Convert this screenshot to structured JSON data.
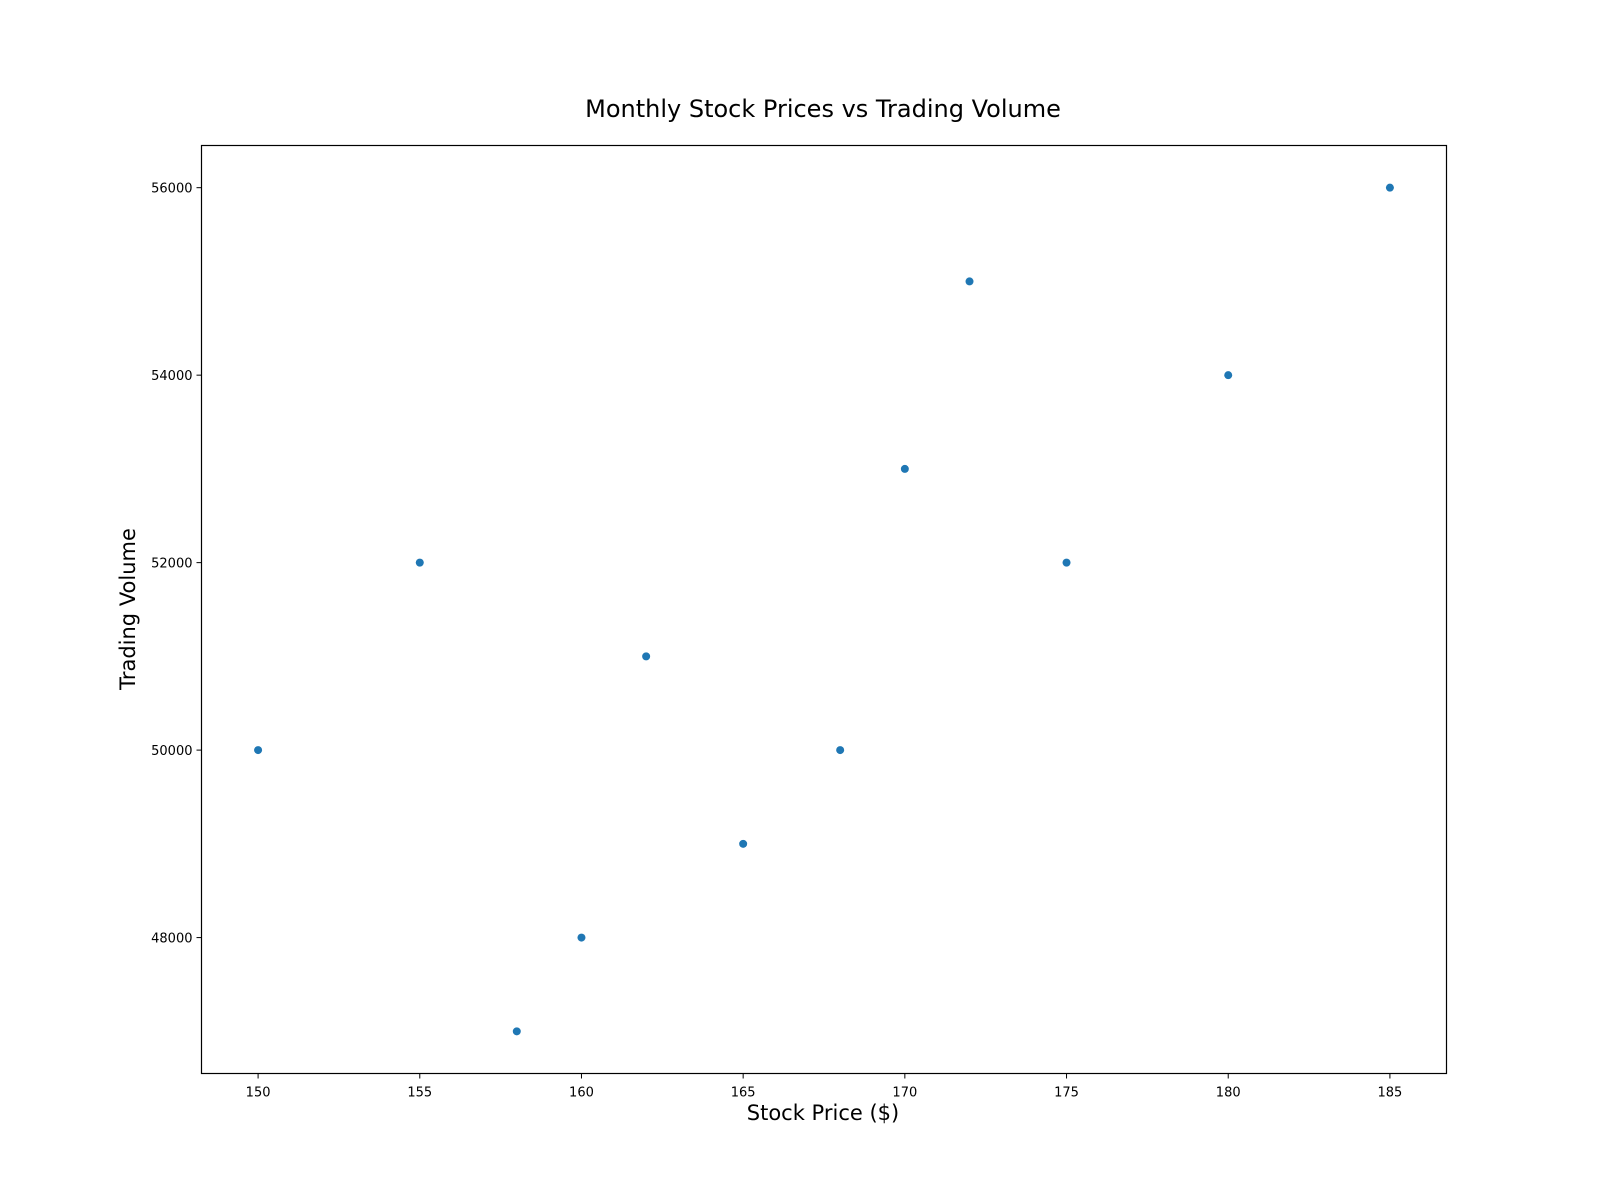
{
  "chart_data": {
    "type": "scatter",
    "title": "Monthly Stock Prices vs Trading Volume",
    "xlabel": "Stock Price ($)",
    "ylabel": "Trading Volume",
    "x": [
      150,
      155,
      158,
      160,
      162,
      165,
      168,
      170,
      172,
      175,
      180,
      185
    ],
    "y": [
      50000,
      52000,
      47000,
      48000,
      51000,
      49000,
      50000,
      53000,
      55000,
      52000,
      54000,
      56000
    ],
    "xlim": [
      148.25,
      186.75
    ],
    "ylim": [
      46550,
      56450
    ],
    "xticks": [
      150,
      155,
      160,
      165,
      170,
      175,
      180,
      185
    ],
    "yticks": [
      48000,
      50000,
      52000,
      54000,
      56000
    ],
    "grid": false,
    "marker_color": "#1f77b4"
  }
}
